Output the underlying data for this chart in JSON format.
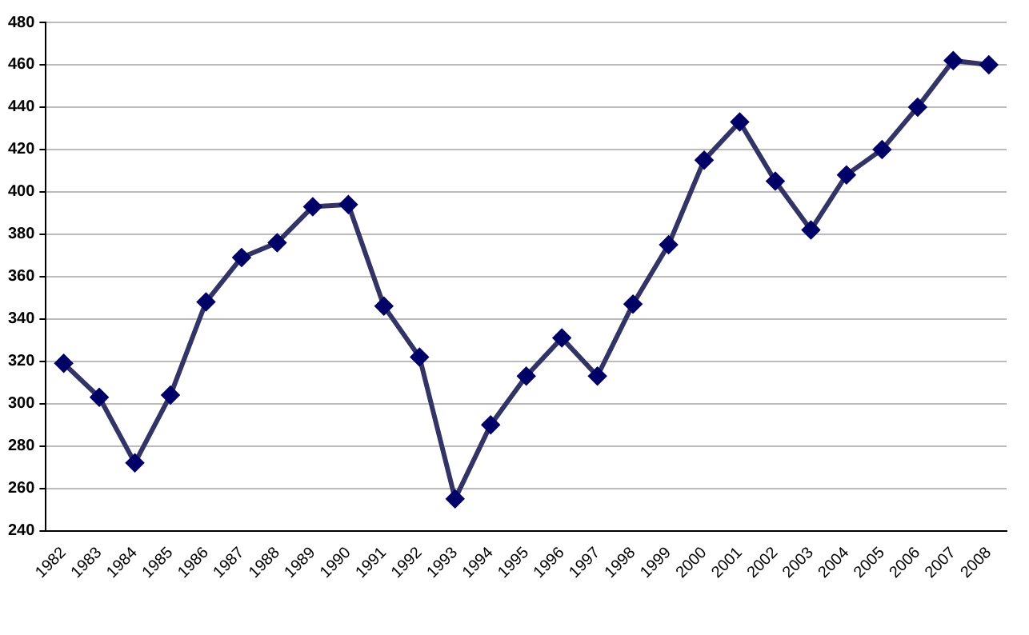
{
  "chart_data": {
    "type": "line",
    "categories": [
      "1982",
      "1983",
      "1984",
      "1985",
      "1986",
      "1987",
      "1988",
      "1989",
      "1990",
      "1991",
      "1992",
      "1993",
      "1994",
      "1995",
      "1996",
      "1997",
      "1998",
      "1999",
      "2000",
      "2001",
      "2002",
      "2003",
      "2004",
      "2005",
      "2006",
      "2007",
      "2008"
    ],
    "series": [
      {
        "color": "#333366",
        "values": [
          319,
          303,
          272,
          304,
          348,
          369,
          376,
          393,
          394,
          346,
          322,
          255,
          290,
          313,
          331,
          313,
          347,
          375,
          415,
          433,
          405,
          382,
          408,
          420,
          440,
          462,
          460
        ]
      }
    ],
    "ylim": [
      240,
      480
    ],
    "yticks": [
      240,
      260,
      280,
      300,
      320,
      340,
      360,
      380,
      400,
      420,
      440,
      460,
      480
    ],
    "grid": "y",
    "legend": false,
    "marker": "diamond",
    "line_style": "solid"
  }
}
